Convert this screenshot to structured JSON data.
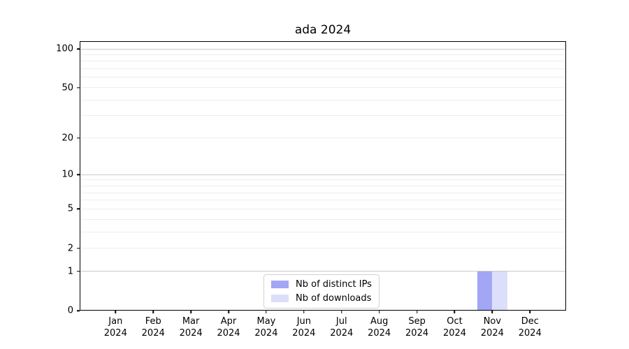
{
  "title": "ada 2024",
  "legend": {
    "items": [
      {
        "label": "Nb of distinct IPs"
      },
      {
        "label": "Nb of downloads"
      }
    ]
  },
  "axes": {
    "y_tick_labels": [
      "0",
      "1",
      "2",
      "5",
      "10",
      "20",
      "50",
      "100"
    ],
    "x_tick_labels": [
      "Jan 2024",
      "Feb 2024",
      "Mar 2024",
      "Apr 2024",
      "May 2024",
      "Jun 2024",
      "Jul 2024",
      "Aug 2024",
      "Sep 2024",
      "Oct 2024",
      "Nov 2024",
      "Dec 2024"
    ]
  },
  "colors": {
    "bar_distinct_ips": "#a2a6f5",
    "bar_downloads": "#dcdffa",
    "grid_major": "#c9c9c9",
    "grid_minor": "#eeeeee",
    "axis": "#000000",
    "legend_border": "#d2d2d2",
    "background": "#ffffff",
    "text": "#000000"
  },
  "chart_data": {
    "type": "bar",
    "title": "ada 2024",
    "categories": [
      "Jan 2024",
      "Feb 2024",
      "Mar 2024",
      "Apr 2024",
      "May 2024",
      "Jun 2024",
      "Jul 2024",
      "Aug 2024",
      "Sep 2024",
      "Oct 2024",
      "Nov 2024",
      "Dec 2024"
    ],
    "series": [
      {
        "name": "Nb of distinct IPs",
        "color": "#a2a6f5",
        "values": [
          0,
          0,
          0,
          0,
          0,
          0,
          0,
          0,
          0,
          0,
          1,
          0
        ]
      },
      {
        "name": "Nb of downloads",
        "color": "#dcdffa",
        "values": [
          0,
          0,
          0,
          0,
          0,
          0,
          0,
          0,
          0,
          0,
          1,
          0
        ]
      }
    ],
    "xlabel": "",
    "ylabel": "",
    "yscale": "log1p",
    "ylim": [
      0,
      112
    ],
    "ytick_values": [
      0,
      1,
      2,
      5,
      10,
      20,
      50,
      100
    ],
    "grid_major_values": [
      1,
      10,
      100
    ],
    "grid_minor_values": [
      2,
      3,
      4,
      5,
      6,
      7,
      8,
      9,
      20,
      30,
      40,
      50,
      60,
      70,
      80,
      90
    ],
    "grid": "horizontal",
    "legend_position": "lower center"
  }
}
